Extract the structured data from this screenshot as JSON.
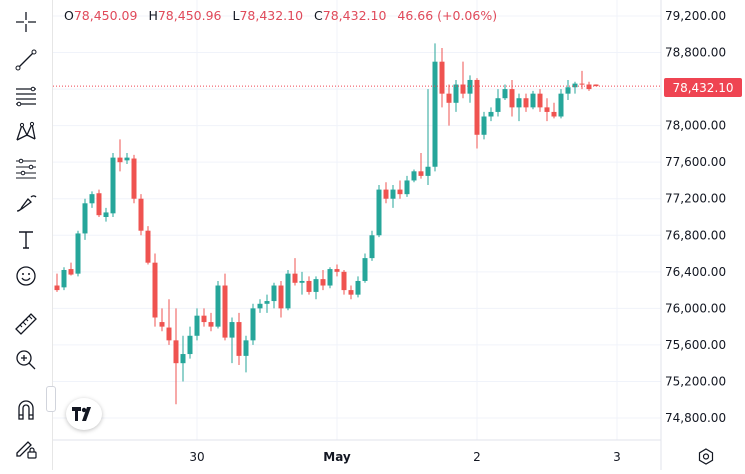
{
  "ohlc": {
    "open_label": "O",
    "open": "78,450.09",
    "high_label": "H",
    "high": "78,450.96",
    "low_label": "L",
    "low": "78,432.10",
    "close_label": "C",
    "close": "78,432.10",
    "change": "46.66 (+0.06%)"
  },
  "price_tag": "78,432.10",
  "colors": {
    "up": "#26a69a",
    "down": "#ef5350",
    "price_line": "#ef4452",
    "grid": "#f0f3fa",
    "text": "#131722"
  },
  "tools": [
    {
      "name": "crosshair-icon"
    },
    {
      "name": "trend-line-icon"
    },
    {
      "name": "fib-retracement-icon"
    },
    {
      "name": "pattern-icon"
    },
    {
      "name": "prediction-icon"
    },
    {
      "name": "brush-icon"
    },
    {
      "name": "text-icon"
    },
    {
      "name": "emoji-icon"
    },
    {
      "name": "ruler-icon"
    },
    {
      "name": "zoom-in-icon"
    },
    {
      "name": "magnet-icon"
    },
    {
      "name": "lock-pencil-icon"
    }
  ],
  "chart_data": {
    "type": "candlestick",
    "y_ticks": [
      "79,200.00",
      "78,800.00",
      "78,400.00",
      "78,000.00",
      "77,600.00",
      "77,200.00",
      "76,800.00",
      "76,400.00",
      "76,000.00",
      "75,600.00",
      "75,200.00",
      "74,800.00"
    ],
    "y_tick_values": [
      79200,
      78800,
      78400,
      78000,
      77600,
      77200,
      76800,
      76400,
      76000,
      75600,
      75200,
      74800
    ],
    "x_ticks": [
      {
        "label": "30",
        "index": 20,
        "bold": false
      },
      {
        "label": "May",
        "index": 40,
        "bold": true
      },
      {
        "label": "2",
        "index": 60,
        "bold": false
      },
      {
        "label": "3",
        "index": 80,
        "bold": false
      }
    ],
    "ylim": [
      74700,
      79300
    ],
    "last_price": 78432.1,
    "candles": [
      [
        76250,
        76380,
        76180,
        76200
      ],
      [
        76230,
        76450,
        76200,
        76420
      ],
      [
        76430,
        76500,
        76360,
        76370
      ],
      [
        76380,
        76850,
        76350,
        76820
      ],
      [
        76820,
        77200,
        76750,
        77150
      ],
      [
        77150,
        77280,
        77100,
        77250
      ],
      [
        77260,
        77300,
        77000,
        77020
      ],
      [
        77000,
        77100,
        76950,
        77050
      ],
      [
        77040,
        77700,
        77000,
        77650
      ],
      [
        77650,
        77850,
        77500,
        77600
      ],
      [
        77620,
        77700,
        77580,
        77650
      ],
      [
        77640,
        77680,
        77150,
        77200
      ],
      [
        77200,
        77250,
        76800,
        76850
      ],
      [
        76850,
        76900,
        76480,
        76500
      ],
      [
        76500,
        76600,
        75800,
        75900
      ],
      [
        75850,
        76000,
        75750,
        75800
      ],
      [
        75790,
        76100,
        75600,
        75650
      ],
      [
        75650,
        76000,
        74950,
        75400
      ],
      [
        75400,
        75700,
        75200,
        75500
      ],
      [
        75500,
        75800,
        75450,
        75700
      ],
      [
        75700,
        76000,
        75650,
        75920
      ],
      [
        75920,
        76000,
        75800,
        75850
      ],
      [
        75850,
        75950,
        75750,
        75800
      ],
      [
        75800,
        76300,
        75780,
        76250
      ],
      [
        76250,
        76380,
        75650,
        75680
      ],
      [
        75680,
        75900,
        75400,
        75850
      ],
      [
        75850,
        75950,
        75380,
        75480
      ],
      [
        75480,
        75700,
        75300,
        75650
      ],
      [
        75650,
        76050,
        75600,
        76000
      ],
      [
        76000,
        76100,
        75950,
        76050
      ],
      [
        76050,
        76150,
        75950,
        76080
      ],
      [
        76080,
        76280,
        76000,
        76250
      ],
      [
        76250,
        76300,
        75900,
        76000
      ],
      [
        76000,
        76420,
        75980,
        76380
      ],
      [
        76380,
        76550,
        76250,
        76280
      ],
      [
        76280,
        76400,
        76150,
        76300
      ],
      [
        76300,
        76350,
        76150,
        76180
      ],
      [
        76180,
        76350,
        76100,
        76320
      ],
      [
        76320,
        76420,
        76200,
        76250
      ],
      [
        76250,
        76450,
        76220,
        76430
      ],
      [
        76430,
        76480,
        76350,
        76400
      ],
      [
        76400,
        76420,
        76150,
        76200
      ],
      [
        76200,
        76250,
        76100,
        76150
      ],
      [
        76150,
        76350,
        76120,
        76300
      ],
      [
        76300,
        76600,
        76280,
        76550
      ],
      [
        76550,
        76850,
        76520,
        76800
      ],
      [
        76800,
        77350,
        76780,
        77300
      ],
      [
        77300,
        77380,
        77150,
        77200
      ],
      [
        77200,
        77350,
        77100,
        77300
      ],
      [
        77300,
        77400,
        77200,
        77250
      ],
      [
        77250,
        77450,
        77220,
        77400
      ],
      [
        77400,
        77520,
        77380,
        77500
      ],
      [
        77500,
        77700,
        77420,
        77450
      ],
      [
        77450,
        78400,
        77350,
        77550
      ],
      [
        77550,
        78900,
        77500,
        78700
      ],
      [
        78700,
        78850,
        78200,
        78350
      ],
      [
        78350,
        78450,
        78000,
        78250
      ],
      [
        78250,
        78500,
        78150,
        78450
      ],
      [
        78450,
        78700,
        78300,
        78350
      ],
      [
        78350,
        78550,
        78250,
        78500
      ],
      [
        78500,
        78520,
        77750,
        77900
      ],
      [
        77900,
        78150,
        77850,
        78100
      ],
      [
        78100,
        78200,
        78050,
        78150
      ],
      [
        78150,
        78400,
        78100,
        78300
      ],
      [
        78300,
        78450,
        78280,
        78400
      ],
      [
        78400,
        78500,
        78100,
        78200
      ],
      [
        78200,
        78350,
        78050,
        78300
      ],
      [
        78300,
        78350,
        78150,
        78200
      ],
      [
        78200,
        78380,
        78180,
        78350
      ],
      [
        78350,
        78400,
        78150,
        78200
      ],
      [
        78200,
        78300,
        78050,
        78150
      ],
      [
        78150,
        78250,
        78080,
        78100
      ],
      [
        78100,
        78400,
        78080,
        78350
      ],
      [
        78350,
        78500,
        78280,
        78420
      ],
      [
        78420,
        78480,
        78350,
        78460
      ],
      [
        78460,
        78600,
        78400,
        78450
      ],
      [
        78450,
        78480,
        78380,
        78400
      ],
      [
        78450,
        78451,
        78432,
        78432
      ]
    ]
  }
}
